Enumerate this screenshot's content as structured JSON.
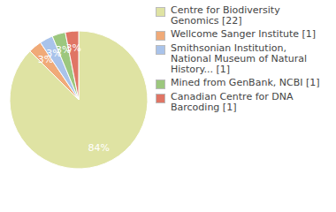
{
  "chart_data": {
    "type": "pie",
    "categories": [
      "Centre for Biodiversity Genomics [22]",
      "Wellcome Sanger Institute [1]",
      "Smithsonian Institution, National Museum of Natural History... [1]",
      "Mined from GenBank, NCBI [1]",
      "Canadian Centre for DNA Barcoding [1]"
    ],
    "values": [
      84,
      3,
      3,
      3,
      3
    ],
    "value_labels": [
      "84%",
      "3%",
      "3%",
      "3%",
      "3%"
    ],
    "data_labels": true,
    "colors": [
      "#dfe3a3",
      "#f0aa78",
      "#a9c3ea",
      "#9cc77e",
      "#e07565"
    ],
    "legend": "right"
  }
}
